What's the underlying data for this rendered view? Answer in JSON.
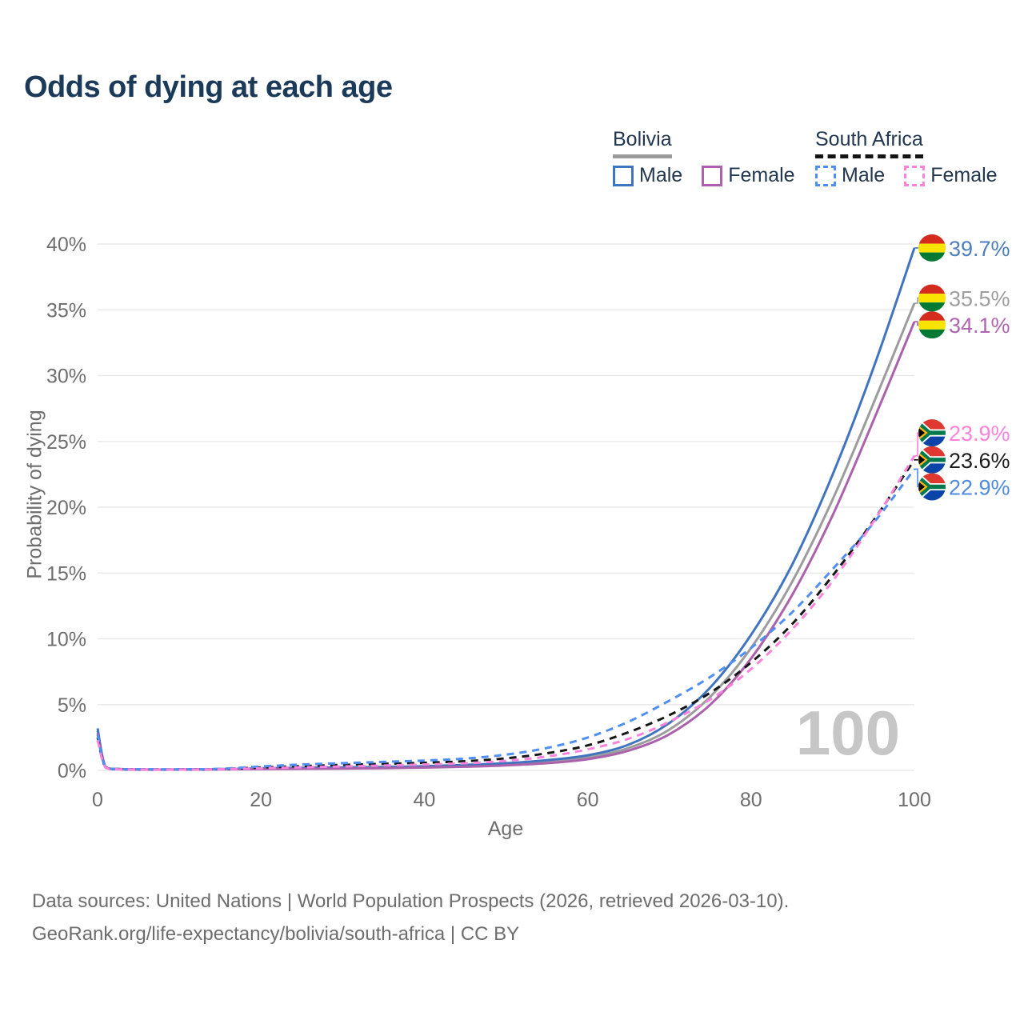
{
  "title": "Odds of dying at each age",
  "legend": {
    "bolivia": {
      "label": "Bolivia",
      "male": "Male",
      "female": "Female"
    },
    "south_africa": {
      "label": "South Africa",
      "male": "Male",
      "female": "Female"
    }
  },
  "footer": {
    "line1": "Data sources: United Nations | World Population Prospects (2026, retrieved 2026-03-10).",
    "line2": "GeoRank.org/life-expectancy/bolivia/south-africa | CC BY"
  },
  "chart_data": {
    "type": "line",
    "title": "Odds of dying at each age",
    "xlabel": "Age",
    "ylabel": "Probability of dying",
    "xlim": [
      0,
      100
    ],
    "ylim": [
      0,
      40
    ],
    "grid": "horizontal",
    "legend_position": "top-right",
    "hover_age_label": "100",
    "x_ticks": [
      {
        "value": 0,
        "label": "0"
      },
      {
        "value": 20,
        "label": "20"
      },
      {
        "value": 40,
        "label": "40"
      },
      {
        "value": 60,
        "label": "60"
      },
      {
        "value": 80,
        "label": "80"
      },
      {
        "value": 100,
        "label": "100"
      }
    ],
    "y_ticks": [
      {
        "value": 0,
        "label": "0%"
      },
      {
        "value": 5,
        "label": "5%"
      },
      {
        "value": 10,
        "label": "10%"
      },
      {
        "value": 15,
        "label": "15%"
      },
      {
        "value": 20,
        "label": "20%"
      },
      {
        "value": 25,
        "label": "25%"
      },
      {
        "value": 30,
        "label": "30%"
      },
      {
        "value": 35,
        "label": "35%"
      },
      {
        "value": 40,
        "label": "40%"
      }
    ],
    "x": [
      0,
      1,
      3,
      5,
      10,
      15,
      20,
      25,
      30,
      35,
      40,
      45,
      50,
      55,
      60,
      65,
      70,
      75,
      80,
      85,
      90,
      95,
      100
    ],
    "series": [
      {
        "id": "bolivia-total",
        "name": "Bolivia (both sexes)",
        "country": "Bolivia",
        "sex": "Both",
        "color": "#9c9c9c",
        "label_color": "#9e9e9e",
        "dash": "solid",
        "flag": "bolivia",
        "end_label": "35.5%",
        "end_value": 35.5,
        "label_at": 35.9,
        "values": [
          3.0,
          0.22,
          0.09,
          0.07,
          0.06,
          0.09,
          0.13,
          0.16,
          0.18,
          0.21,
          0.26,
          0.34,
          0.45,
          0.64,
          0.98,
          1.7,
          3.1,
          5.6,
          9.3,
          14.3,
          20.6,
          27.9,
          35.5
        ]
      },
      {
        "id": "bolivia-male",
        "name": "Bolivia Male",
        "country": "Bolivia",
        "sex": "Male",
        "color": "#4174bf",
        "label_color": "#4d7fc0",
        "dash": "solid",
        "flag": "bolivia",
        "end_label": "39.7%",
        "end_value": 39.7,
        "label_at": 39.7,
        "values": [
          3.2,
          0.25,
          0.1,
          0.08,
          0.07,
          0.1,
          0.16,
          0.2,
          0.22,
          0.26,
          0.32,
          0.42,
          0.55,
          0.78,
          1.15,
          1.95,
          3.6,
          6.3,
          10.3,
          15.6,
          22.5,
          30.6,
          39.7
        ]
      },
      {
        "id": "bolivia-female",
        "name": "Bolivia Female",
        "country": "Bolivia",
        "sex": "Female",
        "color": "#ab61ab",
        "label_color": "#b164b0",
        "dash": "solid",
        "flag": "bolivia",
        "end_label": "34.1%",
        "end_value": 34.1,
        "label_at": 33.85,
        "values": [
          2.8,
          0.2,
          0.08,
          0.06,
          0.05,
          0.08,
          0.1,
          0.12,
          0.14,
          0.17,
          0.21,
          0.28,
          0.38,
          0.55,
          0.85,
          1.5,
          2.75,
          5.0,
          8.5,
          13.3,
          19.4,
          26.6,
          34.1
        ]
      },
      {
        "id": "sa-total",
        "name": "South Africa (both sexes)",
        "country": "South Africa",
        "sex": "Both",
        "color": "#161616",
        "label_color": "#1c1c1c",
        "dash": "dashed",
        "flag": "south-africa",
        "end_label": "23.6%",
        "end_value": 23.6,
        "label_at": 23.6,
        "values": [
          2.5,
          0.22,
          0.09,
          0.08,
          0.07,
          0.1,
          0.22,
          0.33,
          0.42,
          0.5,
          0.58,
          0.7,
          0.92,
          1.3,
          1.9,
          2.9,
          4.2,
          5.9,
          8.2,
          11.1,
          14.8,
          19.0,
          23.6
        ]
      },
      {
        "id": "sa-male",
        "name": "South Africa Male",
        "country": "South Africa",
        "sex": "Male",
        "color": "#4f8ef5",
        "label_color": "#4f8be0",
        "dash": "dashed",
        "flag": "south-africa",
        "end_label": "22.9%",
        "end_value": 22.9,
        "label_at": 21.55,
        "values": [
          2.7,
          0.25,
          0.1,
          0.09,
          0.08,
          0.12,
          0.3,
          0.45,
          0.55,
          0.65,
          0.75,
          0.9,
          1.2,
          1.7,
          2.5,
          3.7,
          5.3,
          7.1,
          9.3,
          12.0,
          15.3,
          18.8,
          22.9
        ]
      },
      {
        "id": "sa-female",
        "name": "South Africa Female",
        "country": "South Africa",
        "sex": "Female",
        "color": "#fc82dc",
        "label_color": "#fc82dc",
        "dash": "dashed",
        "flag": "south-africa",
        "end_label": "23.9%",
        "end_value": 23.9,
        "label_at": 25.65,
        "values": [
          2.3,
          0.2,
          0.08,
          0.07,
          0.06,
          0.09,
          0.16,
          0.24,
          0.3,
          0.37,
          0.45,
          0.55,
          0.73,
          1.05,
          1.6,
          2.4,
          3.7,
          5.4,
          7.7,
          10.7,
          14.4,
          18.9,
          23.9
        ]
      }
    ]
  }
}
